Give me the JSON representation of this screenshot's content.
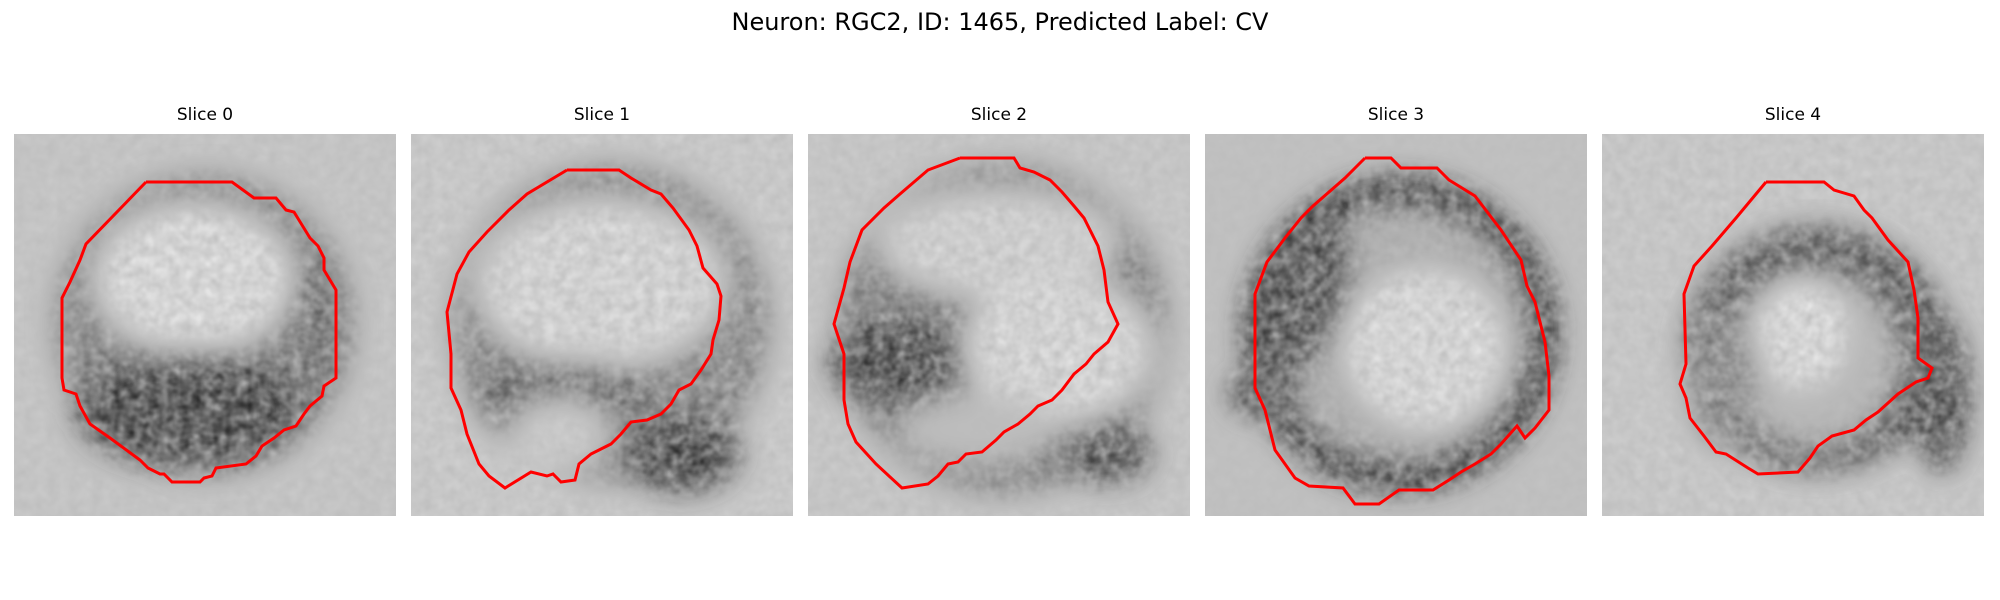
{
  "figure": {
    "title": "Neuron: RGC2, ID: 1465, Predicted Label: CV",
    "outline_color": "#ff0000"
  },
  "panels": [
    {
      "title": "Slice 0",
      "image": "grayscale-em-slice-0",
      "outline": "red-cell-contour"
    },
    {
      "title": "Slice 1",
      "image": "grayscale-em-slice-1",
      "outline": "red-cell-contour"
    },
    {
      "title": "Slice 2",
      "image": "grayscale-em-slice-2",
      "outline": "red-cell-contour"
    },
    {
      "title": "Slice 3",
      "image": "grayscale-em-slice-3",
      "outline": "red-cell-contour"
    },
    {
      "title": "Slice 4",
      "image": "grayscale-em-slice-4",
      "outline": "red-cell-contour"
    }
  ]
}
